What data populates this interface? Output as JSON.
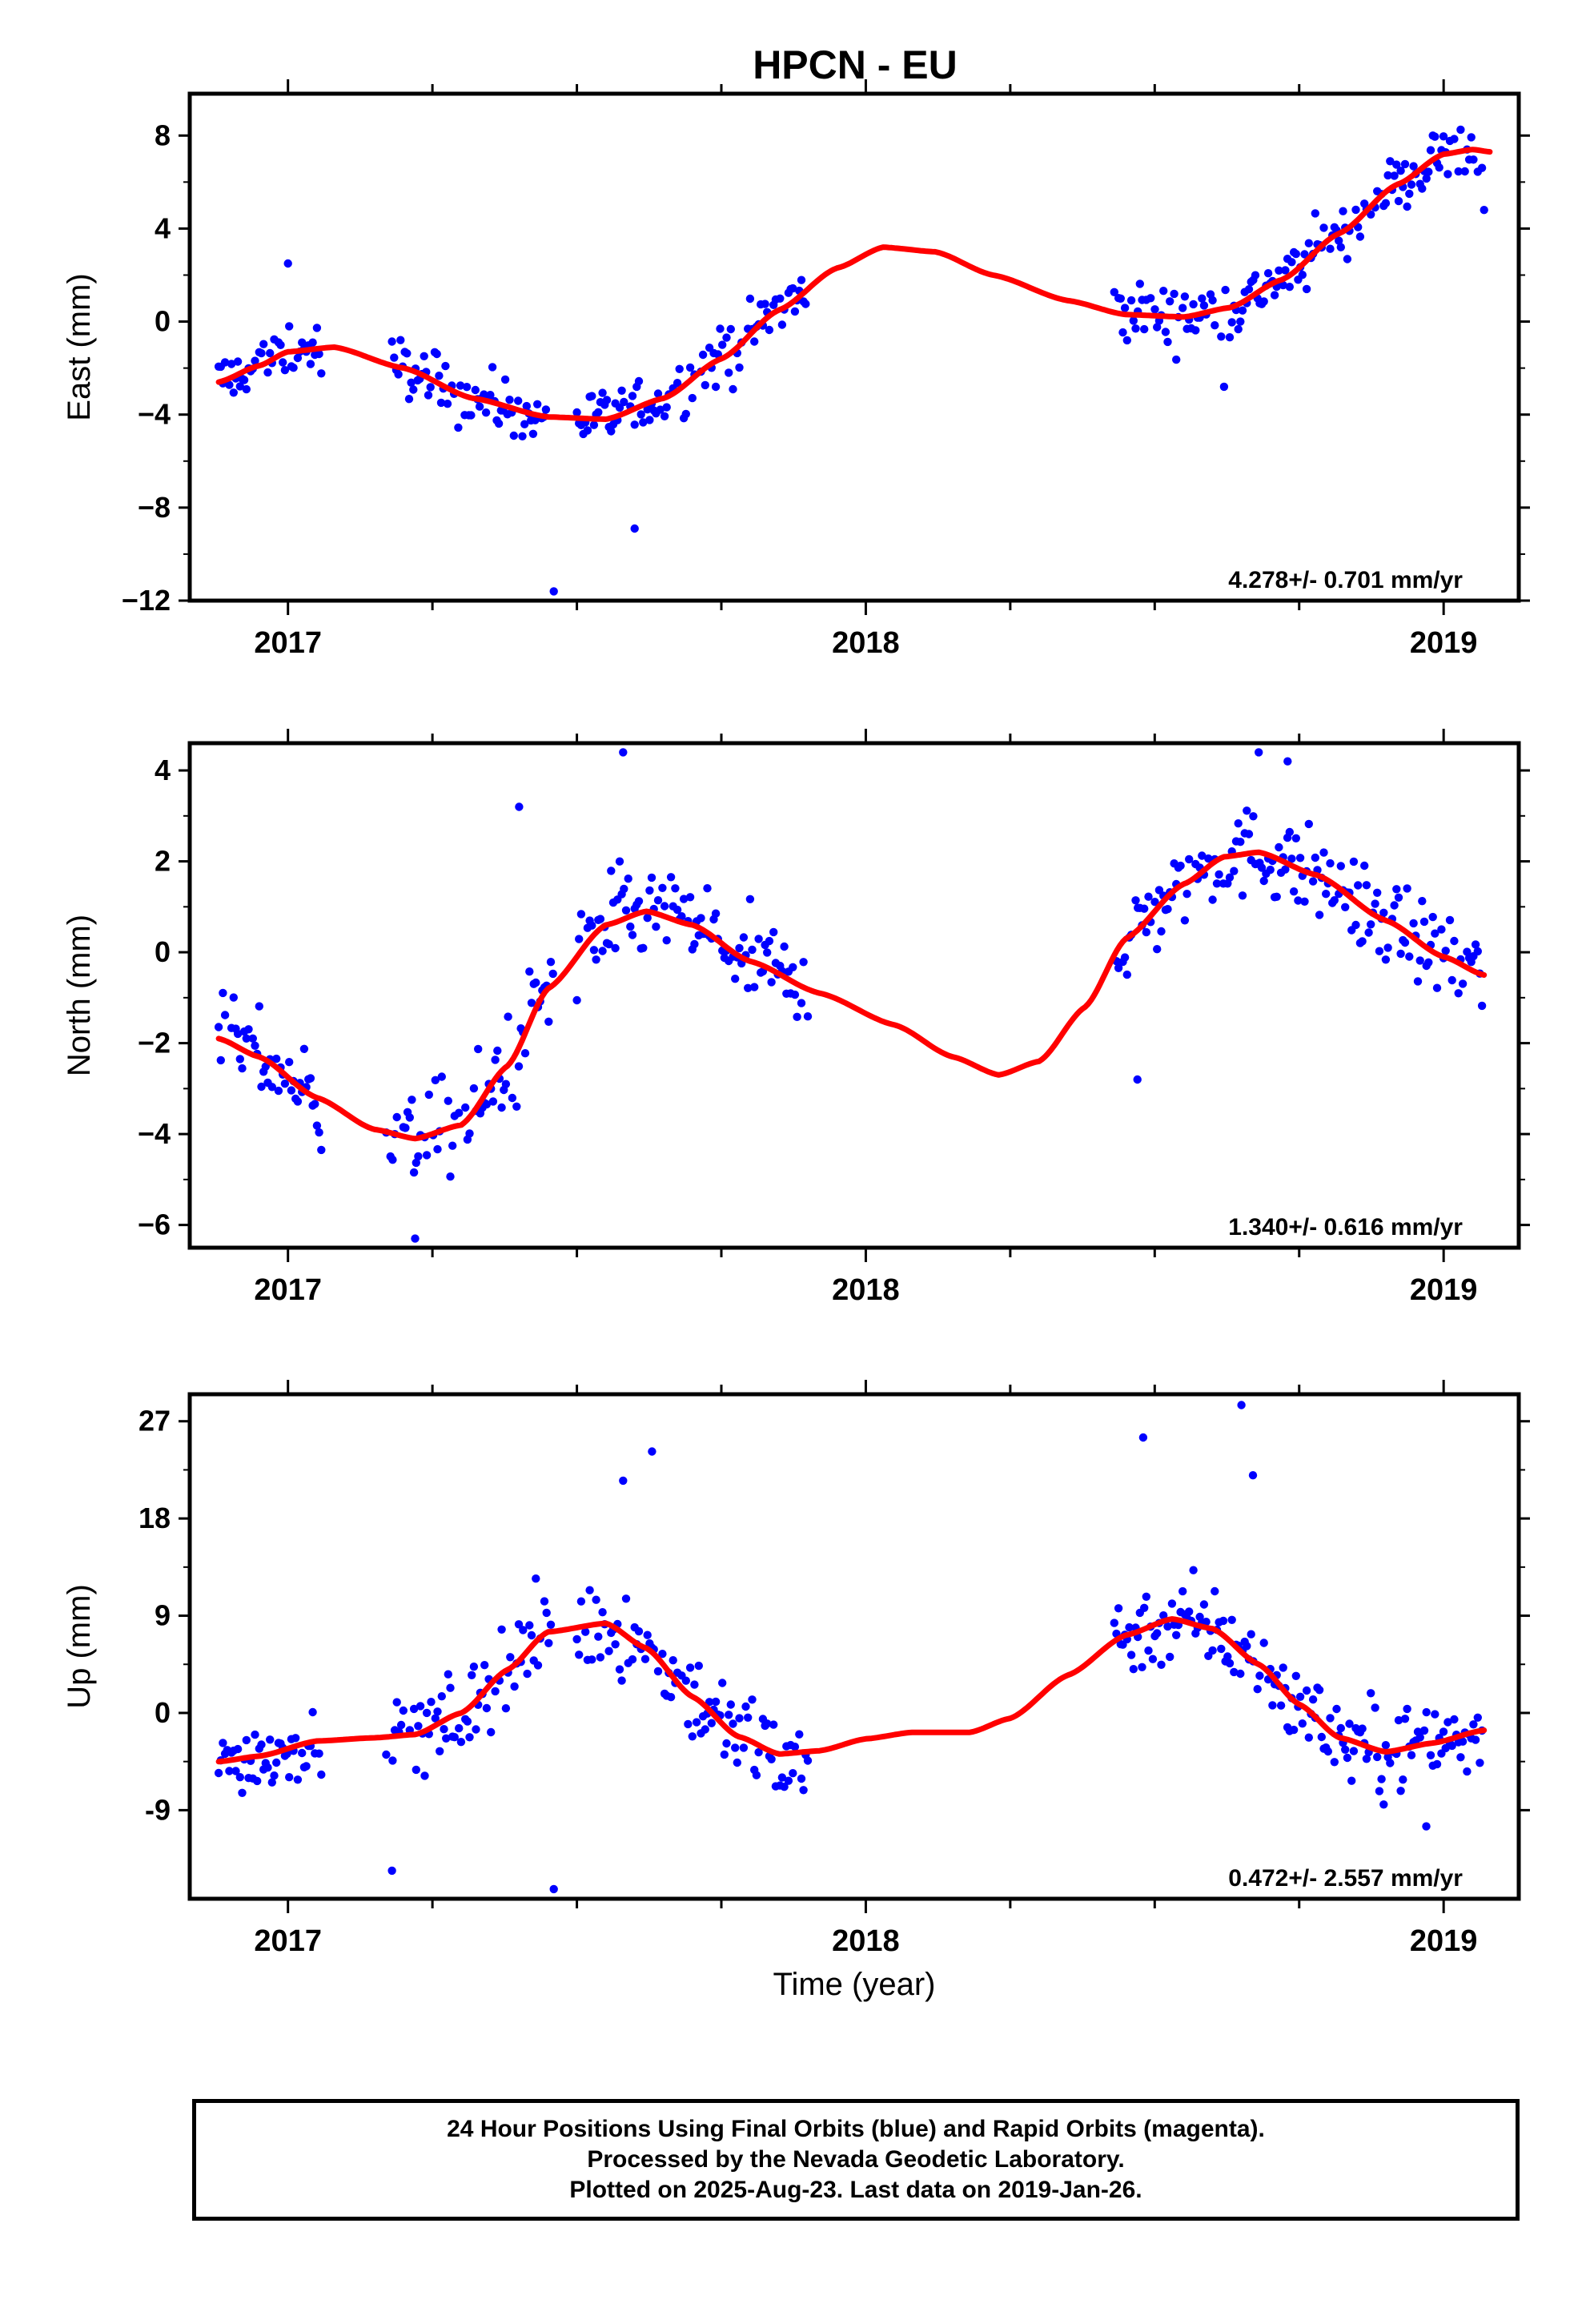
{
  "title": "HPCN - EU",
  "colors": {
    "points": "#0000ff",
    "model": "#ff0000",
    "frame": "#000000"
  },
  "chart_data": [
    {
      "type": "scatter",
      "ylabel": "East (mm)",
      "xlim": [
        2016.83,
        2019.13
      ],
      "ylim": [
        -12,
        9.8
      ],
      "yticks": [
        8,
        4,
        0,
        -4,
        -8,
        -12
      ],
      "ytick_labels": [
        "8",
        "4",
        "0",
        "−4",
        "−8",
        "−12"
      ],
      "xticks": [
        2017,
        2018,
        2019
      ],
      "xtick_labels": [
        "2017",
        "2018",
        "2019"
      ],
      "rate_label": "4.278+/- 0.701 mm/yr",
      "points_color": "blue",
      "model_color": "red",
      "model_curve": [
        [
          2016.88,
          -2.6
        ],
        [
          2016.95,
          -1.9
        ],
        [
          2017.0,
          -1.3
        ],
        [
          2017.08,
          -1.1
        ],
        [
          2017.2,
          -2.0
        ],
        [
          2017.32,
          -3.3
        ],
        [
          2017.45,
          -4.1
        ],
        [
          2017.55,
          -4.2
        ],
        [
          2017.65,
          -3.3
        ],
        [
          2017.75,
          -1.6
        ],
        [
          2017.85,
          0.5
        ],
        [
          2017.95,
          2.3
        ],
        [
          2018.03,
          3.2
        ],
        [
          2018.12,
          3.0
        ],
        [
          2018.22,
          2.0
        ],
        [
          2018.35,
          0.9
        ],
        [
          2018.45,
          0.3
        ],
        [
          2018.55,
          0.2
        ],
        [
          2018.63,
          0.6
        ],
        [
          2018.72,
          1.8
        ],
        [
          2018.82,
          3.8
        ],
        [
          2018.92,
          5.9
        ],
        [
          2019.0,
          7.2
        ],
        [
          2019.05,
          7.4
        ],
        [
          2019.08,
          7.3
        ]
      ],
      "segments": [
        {
          "start": 2016.88,
          "end": 2017.06,
          "scatter": 0.9
        },
        {
          "start": 2017.18,
          "end": 2017.45,
          "scatter": 0.9
        },
        {
          "start": 2017.5,
          "end": 2017.9,
          "scatter": 0.9
        },
        {
          "start": 2018.43,
          "end": 2019.07,
          "scatter": 0.9
        }
      ],
      "outliers": [
        [
          2017.0,
          2.5
        ],
        [
          2017.46,
          -11.6
        ],
        [
          2017.6,
          -8.9
        ],
        [
          2018.62,
          -2.8
        ],
        [
          2019.07,
          4.8
        ]
      ]
    },
    {
      "type": "scatter",
      "ylabel": "North (mm)",
      "xlim": [
        2016.83,
        2019.13
      ],
      "ylim": [
        -6.5,
        4.6
      ],
      "yticks": [
        4,
        2,
        0,
        -2,
        -4,
        -6
      ],
      "ytick_labels": [
        "4",
        "2",
        "0",
        "−2",
        "−4",
        "−6"
      ],
      "xticks": [
        2017,
        2018,
        2019
      ],
      "xtick_labels": [
        "2017",
        "2018",
        "2019"
      ],
      "rate_label": "1.340+/- 0.616 mm/yr",
      "points_color": "blue",
      "model_color": "red",
      "model_curve": [
        [
          2016.88,
          -1.9
        ],
        [
          2016.95,
          -2.3
        ],
        [
          2017.05,
          -3.2
        ],
        [
          2017.15,
          -3.9
        ],
        [
          2017.22,
          -4.1
        ],
        [
          2017.3,
          -3.8
        ],
        [
          2017.38,
          -2.5
        ],
        [
          2017.45,
          -0.8
        ],
        [
          2017.55,
          0.6
        ],
        [
          2017.62,
          0.9
        ],
        [
          2017.7,
          0.6
        ],
        [
          2017.8,
          -0.2
        ],
        [
          2017.92,
          -0.9
        ],
        [
          2018.05,
          -1.6
        ],
        [
          2018.15,
          -2.3
        ],
        [
          2018.23,
          -2.7
        ],
        [
          2018.3,
          -2.4
        ],
        [
          2018.38,
          -1.2
        ],
        [
          2018.45,
          0.3
        ],
        [
          2018.55,
          1.5
        ],
        [
          2018.62,
          2.1
        ],
        [
          2018.68,
          2.2
        ],
        [
          2018.78,
          1.7
        ],
        [
          2018.9,
          0.7
        ],
        [
          2019.0,
          -0.1
        ],
        [
          2019.07,
          -0.5
        ]
      ],
      "segments": [
        {
          "start": 2016.88,
          "end": 2017.06,
          "scatter": 0.7
        },
        {
          "start": 2017.17,
          "end": 2017.46,
          "scatter": 0.8
        },
        {
          "start": 2017.5,
          "end": 2017.9,
          "scatter": 0.8
        },
        {
          "start": 2018.43,
          "end": 2019.07,
          "scatter": 0.7
        }
      ],
      "outliers": [
        [
          2017.4,
          3.2
        ],
        [
          2017.58,
          4.4
        ],
        [
          2018.68,
          4.4
        ],
        [
          2018.73,
          4.2
        ],
        [
          2018.47,
          -2.8
        ],
        [
          2017.22,
          -6.3
        ]
      ]
    },
    {
      "type": "scatter",
      "ylabel": "Up (mm)",
      "xlim": [
        2016.83,
        2019.13
      ],
      "ylim": [
        -17.2,
        29.5
      ],
      "yticks": [
        27,
        18,
        9,
        0,
        -9
      ],
      "ytick_labels": [
        "27",
        "18",
        "9",
        "0",
        "-9"
      ],
      "xticks": [
        2017,
        2018,
        2019
      ],
      "xtick_labels": [
        "2017",
        "2018",
        "2019"
      ],
      "xlabel": "Time (year)",
      "rate_label": "0.472+/- 2.557 mm/yr",
      "points_color": "blue",
      "model_color": "red",
      "model_curve": [
        [
          2016.88,
          -4.5
        ],
        [
          2016.95,
          -4.0
        ],
        [
          2017.05,
          -2.6
        ],
        [
          2017.15,
          -2.3
        ],
        [
          2017.22,
          -2.0
        ],
        [
          2017.3,
          0.0
        ],
        [
          2017.38,
          4.0
        ],
        [
          2017.45,
          7.5
        ],
        [
          2017.55,
          8.3
        ],
        [
          2017.62,
          6.0
        ],
        [
          2017.7,
          1.5
        ],
        [
          2017.78,
          -2.2
        ],
        [
          2017.85,
          -3.8
        ],
        [
          2017.92,
          -3.5
        ],
        [
          2018.0,
          -2.4
        ],
        [
          2018.08,
          -1.8
        ],
        [
          2018.18,
          -1.8
        ],
        [
          2018.25,
          -0.5
        ],
        [
          2018.35,
          3.5
        ],
        [
          2018.45,
          7.2
        ],
        [
          2018.53,
          8.7
        ],
        [
          2018.6,
          7.8
        ],
        [
          2018.68,
          4.5
        ],
        [
          2018.75,
          0.8
        ],
        [
          2018.82,
          -2.3
        ],
        [
          2018.9,
          -3.6
        ],
        [
          2018.98,
          -2.8
        ],
        [
          2019.07,
          -1.6
        ]
      ],
      "segments": [
        {
          "start": 2016.88,
          "end": 2017.06,
          "scatter": 2.3
        },
        {
          "start": 2017.17,
          "end": 2017.46,
          "scatter": 3.2
        },
        {
          "start": 2017.5,
          "end": 2017.9,
          "scatter": 3.2
        },
        {
          "start": 2018.43,
          "end": 2019.07,
          "scatter": 2.8
        }
      ],
      "outliers": [
        [
          2017.46,
          -16.3
        ],
        [
          2017.63,
          24.2
        ],
        [
          2018.65,
          28.5
        ],
        [
          2018.48,
          25.5
        ],
        [
          2018.67,
          22.0
        ],
        [
          2017.58,
          21.5
        ],
        [
          2017.18,
          -14.6
        ],
        [
          2018.97,
          -10.5
        ]
      ]
    }
  ],
  "caption": {
    "line1": "24 Hour Positions Using Final Orbits (blue) and Rapid Orbits (magenta).",
    "line2": "Processed by the Nevada Geodetic Laboratory.",
    "line3": "Plotted on 2025-Aug-23. Last data on 2019-Jan-26."
  }
}
